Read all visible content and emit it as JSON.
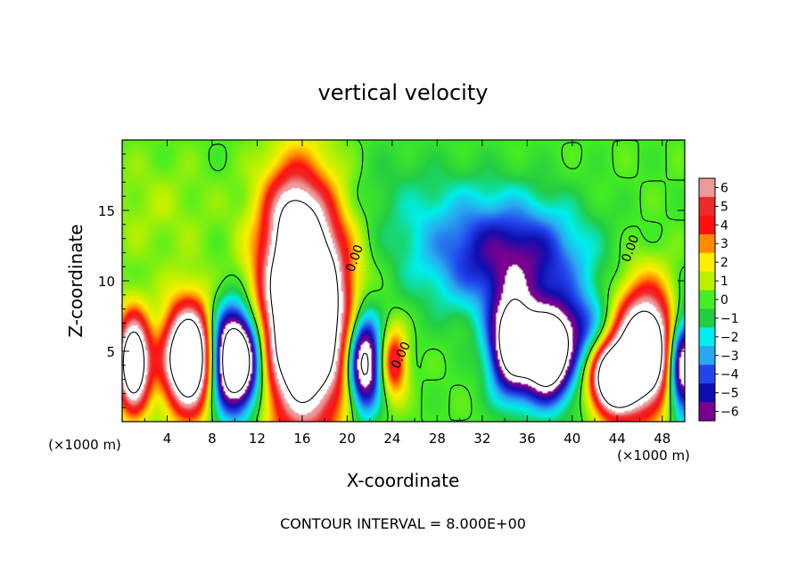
{
  "chart_data": {
    "type": "heatmap",
    "title": "vertical velocity",
    "xlabel": "X-coordinate",
    "ylabel": "Z-coordinate",
    "x_unit_left": "(×1000 m)",
    "x_unit_right": "(×1000 m)",
    "xlim": [
      0,
      50
    ],
    "ylim": [
      0,
      20
    ],
    "x_ticks": [
      4,
      8,
      12,
      16,
      20,
      24,
      28,
      32,
      36,
      40,
      44,
      48
    ],
    "y_ticks": [
      5,
      10,
      15
    ],
    "contour_interval_text": "CONTOUR INTERVAL = 8.000E+00",
    "contour_labels": [
      {
        "text": "0.00",
        "x": 21.0,
        "y": 11.5,
        "angle": -70
      },
      {
        "text": "0.00",
        "x": 25.1,
        "y": 4.6,
        "angle": -65
      },
      {
        "text": "0.00",
        "x": 45.5,
        "y": 12.2,
        "angle": -70
      }
    ],
    "colorbar": {
      "levels": [
        6,
        5,
        4,
        3,
        2,
        1,
        0,
        -1,
        -2,
        -3,
        -4,
        -5,
        -6
      ],
      "colors": [
        "#ee9a9a",
        "#ee2a2a",
        "#ff1010",
        "#ff8c00",
        "#ffee00",
        "#bdf000",
        "#44ee22",
        "#22cc44",
        "#00eeee",
        "#2aa8ee",
        "#2244ee",
        "#0e0eae",
        "#7a0090"
      ]
    },
    "features": [
      {
        "x": 1.0,
        "z": 4.2,
        "sx": 1.0,
        "sz": 2.3,
        "amp": 12
      },
      {
        "x": 6.0,
        "z": 4.5,
        "sx": 1.6,
        "sz": 2.6,
        "amp": 14
      },
      {
        "x": 10.0,
        "z": 4.4,
        "sx": 1.6,
        "sz": 2.5,
        "amp": -14
      },
      {
        "x": 16.2,
        "z": 8.0,
        "sx": 2.6,
        "sz": 5.5,
        "amp": 16
      },
      {
        "x": 15.0,
        "z": 15.0,
        "sx": 1.6,
        "sz": 2.4,
        "amp": 3
      },
      {
        "x": 21.5,
        "z": 4.2,
        "sx": 1.0,
        "sz": 2.4,
        "amp": -10
      },
      {
        "x": 24.2,
        "z": 4.2,
        "sx": 0.8,
        "sz": 1.7,
        "amp": 5
      },
      {
        "x": 33.0,
        "z": 12.0,
        "sx": 5.0,
        "sz": 3.0,
        "amp": -4.5
      },
      {
        "x": 37.0,
        "z": 11.0,
        "sx": 3.5,
        "sz": 2.5,
        "amp": -2.0
      },
      {
        "x": 34.7,
        "z": 5.5,
        "sx": 1.4,
        "sz": 2.4,
        "amp": -10
      },
      {
        "x": 37.8,
        "z": 4.4,
        "sx": 1.3,
        "sz": 1.9,
        "amp": -10
      },
      {
        "x": 39.5,
        "z": 6.5,
        "sx": 2.5,
        "sz": 1.8,
        "amp": -5
      },
      {
        "x": 43.5,
        "z": 3.0,
        "sx": 1.4,
        "sz": 1.8,
        "amp": 12
      },
      {
        "x": 46.5,
        "z": 5.0,
        "sx": 1.9,
        "sz": 3.0,
        "amp": 13
      },
      {
        "x": 49.8,
        "z": 4.0,
        "sx": 1.0,
        "sz": 2.5,
        "amp": -10
      },
      {
        "x": 40.0,
        "z": 2.5,
        "sx": 4.0,
        "sz": 2.0,
        "amp": -1.2
      },
      {
        "x": 3.0,
        "z": 15.0,
        "sx": 4.0,
        "sz": 3.0,
        "amp": 0.8
      },
      {
        "x": 24.0,
        "z": 16.0,
        "sx": 5.0,
        "sz": 3.0,
        "amp": -0.8
      }
    ]
  }
}
